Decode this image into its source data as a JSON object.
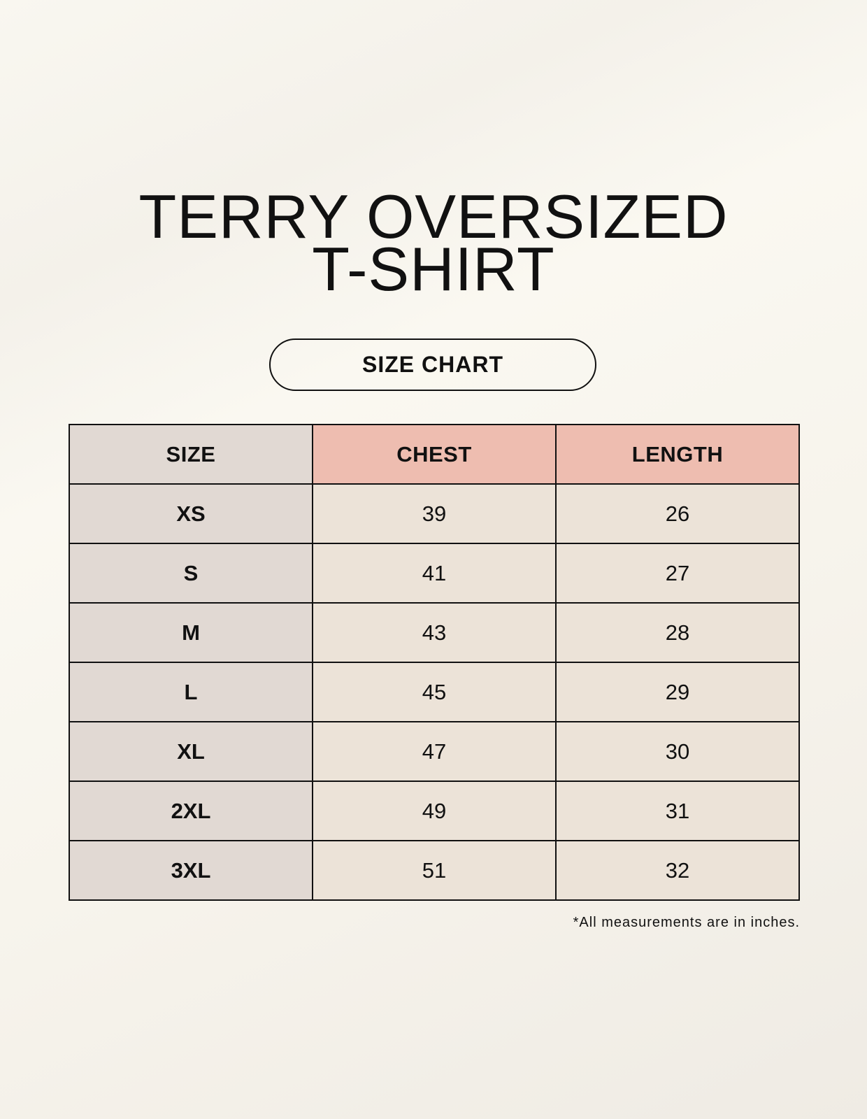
{
  "title_line1": "TERRY OVERSIZED",
  "title_line2": "T-SHIRT",
  "badge": "SIZE CHART",
  "table": {
    "headers": [
      "SIZE",
      "CHEST",
      "LENGTH"
    ],
    "rows": [
      [
        "XS",
        "39",
        "26"
      ],
      [
        "S",
        "41",
        "27"
      ],
      [
        "M",
        "43",
        "28"
      ],
      [
        "L",
        "45",
        "29"
      ],
      [
        "XL",
        "47",
        "30"
      ],
      [
        "2XL",
        "49",
        "31"
      ],
      [
        "3XL",
        "51",
        "32"
      ]
    ]
  },
  "note": "*All measurements are in inches.",
  "colors": {
    "size_column": "#e1d9d3",
    "header_highlight": "#eebdb0",
    "cell": "#ece3d8"
  }
}
